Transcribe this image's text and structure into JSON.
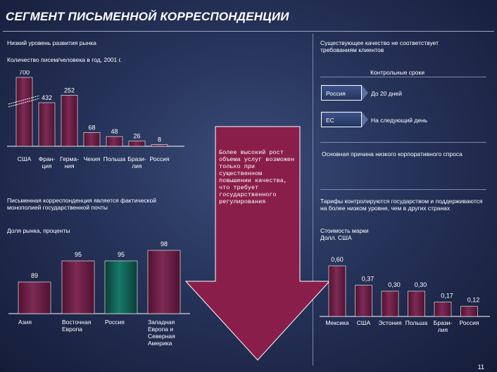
{
  "title": "СЕГМЕНТ ПИСЬМЕННОЙ КОРРЕСПОНДЕНЦИИ",
  "left_top": {
    "heading": "Низкий уровень развития рынка",
    "subheading": "Количество писем/человека в год, 2001 г."
  },
  "right_top": {
    "heading": "Существующее качество не соответствует требованиям клиентов",
    "deadlines_label": "Контрольные сроки",
    "rows": [
      {
        "name": "Россия",
        "value": "До 20 дней"
      },
      {
        "name": "ЕС",
        "value": "На следующий день"
      }
    ]
  },
  "callout": {
    "text": "Более высокий рост объема услуг возможен только при существенном повышении качества, что требует государственного регулирования"
  },
  "right_mid": {
    "reason": "Основная причина низкого корпоративного спроса",
    "tariffs": "Тарифы контролируются государством и поддерживаются на более низком уровне, чем в других странах"
  },
  "left_mid": {
    "monopoly": "Письменная корреспонденция является фактической монополией государственной почты",
    "share_label": "Доля рынка, проценты"
  },
  "right_bottom": {
    "stamp_label_line1": "Стоимость марки",
    "stamp_label_line2": "Долл. США"
  },
  "page_number": "11",
  "colors": {
    "bar": "#6e1f45",
    "bar_highlight": "#0f5e52",
    "arrow": "#8a1e4a"
  },
  "chart_data": [
    {
      "type": "bar",
      "title": "Количество писем/человека в год, 2001 г.",
      "categories": [
        "США",
        "Фран-\nция",
        "Герма-\nния",
        "Чехия",
        "Польша",
        "Брази-\nлия",
        "Россия"
      ],
      "values": [
        700,
        432,
        252,
        68,
        48,
        26,
        8
      ],
      "value_labels": [
        "700",
        "432",
        "252",
        "68",
        "48",
        "26",
        "8"
      ],
      "broken_axis": true
    },
    {
      "type": "bar",
      "title": "Доля рынка, проценты",
      "categories": [
        "Азия",
        "Восточная\nЕвропа",
        "Россия",
        "Западная\nЕвропа и\nСеверная\nАмерика"
      ],
      "values": [
        89,
        95,
        95,
        98
      ],
      "value_labels": [
        "89",
        "95",
        "95",
        "98"
      ],
      "highlight": "Россия"
    },
    {
      "type": "bar",
      "title": "Стоимость марки Долл. США",
      "categories": [
        "Мексика",
        "США",
        "Эстония",
        "Польша",
        "Брази-\nлия",
        "Россия"
      ],
      "values": [
        0.6,
        0.37,
        0.3,
        0.3,
        0.17,
        0.12
      ],
      "value_labels": [
        "0,60",
        "0,37",
        "0,30",
        "0,30",
        "0,17",
        "0,12"
      ]
    }
  ]
}
